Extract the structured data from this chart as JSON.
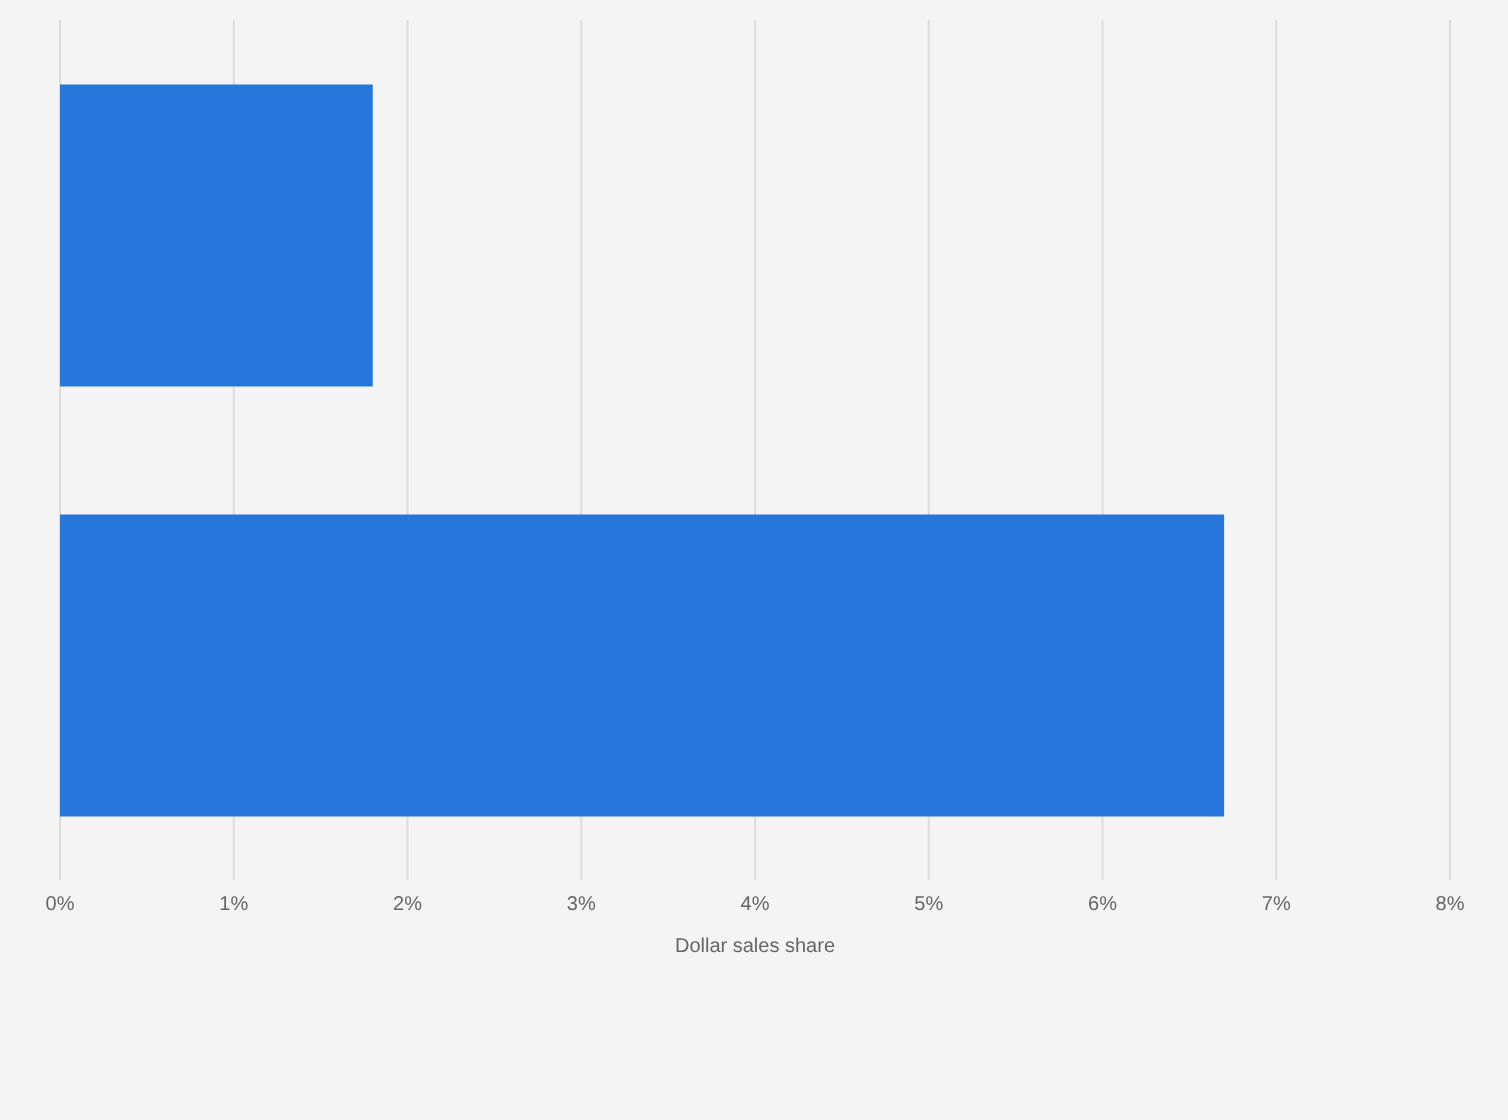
{
  "chart_data": {
    "type": "bar",
    "orientation": "horizontal",
    "xlabel": "Dollar sales share",
    "categories": [
      null,
      null
    ],
    "values": [
      1.8,
      6.7
    ],
    "color": "#2776dc",
    "xlim": [
      0,
      8
    ],
    "xticks": [
      {
        "value": 0,
        "label": "0%"
      },
      {
        "value": 1,
        "label": "1%"
      },
      {
        "value": 2,
        "label": "2%"
      },
      {
        "value": 3,
        "label": "3%"
      },
      {
        "value": 4,
        "label": "4%"
      },
      {
        "value": 5,
        "label": "5%"
      },
      {
        "value": 6,
        "label": "6%"
      },
      {
        "value": 7,
        "label": "7%"
      },
      {
        "value": 8,
        "label": "8%"
      }
    ],
    "grid": "x"
  }
}
